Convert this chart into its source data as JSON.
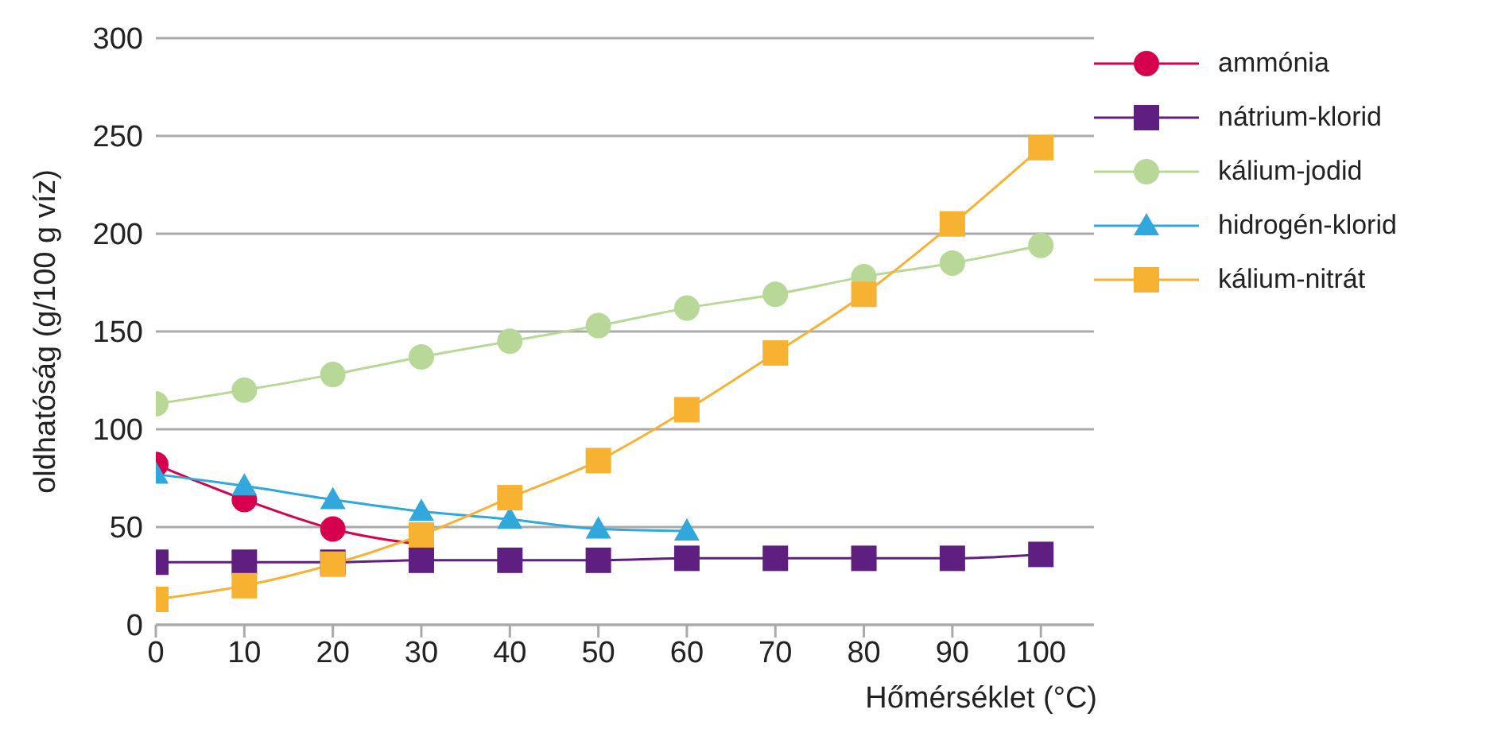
{
  "chart_data": {
    "type": "line",
    "xlabel": "Hőmérséklet (°C)",
    "ylabel": "oldhatóság (g/100 g víz)",
    "x": [
      0,
      10,
      20,
      30,
      40,
      50,
      60,
      70,
      80,
      90,
      100
    ],
    "xlim": [
      0,
      106
    ],
    "xticks": [
      0,
      10,
      20,
      30,
      40,
      50,
      60,
      70,
      80,
      90,
      100
    ],
    "ylim": [
      0,
      300
    ],
    "yticks": [
      0,
      50,
      100,
      150,
      200,
      250,
      300
    ],
    "grid": "y",
    "legend": "right",
    "line_style": "solid",
    "series": [
      {
        "name": "ammónia",
        "color": "#d7004f",
        "marker": "circle",
        "values": [
          82,
          64,
          49,
          41,
          null,
          null,
          null,
          null,
          null,
          null,
          null
        ]
      },
      {
        "name": "nátrium-klorid",
        "color": "#5f1f80",
        "marker": "square",
        "values": [
          32,
          32,
          32,
          33,
          33,
          33,
          34,
          34,
          34,
          34,
          36
        ]
      },
      {
        "name": "kálium-jodid",
        "color": "#b8d898",
        "marker": "circle",
        "values": [
          113,
          120,
          128,
          137,
          145,
          153,
          162,
          169,
          178,
          185,
          194
        ]
      },
      {
        "name": "hidrogén-klorid",
        "color": "#30a8dc",
        "marker": "triangle",
        "values": [
          77,
          71,
          64,
          58,
          54,
          49,
          48,
          null,
          null,
          null,
          null
        ]
      },
      {
        "name": "kálium-nitrát",
        "color": "#f8b232",
        "marker": "square",
        "values": [
          13,
          20,
          31,
          46,
          65,
          84,
          110,
          139,
          169,
          205,
          244
        ]
      }
    ]
  }
}
